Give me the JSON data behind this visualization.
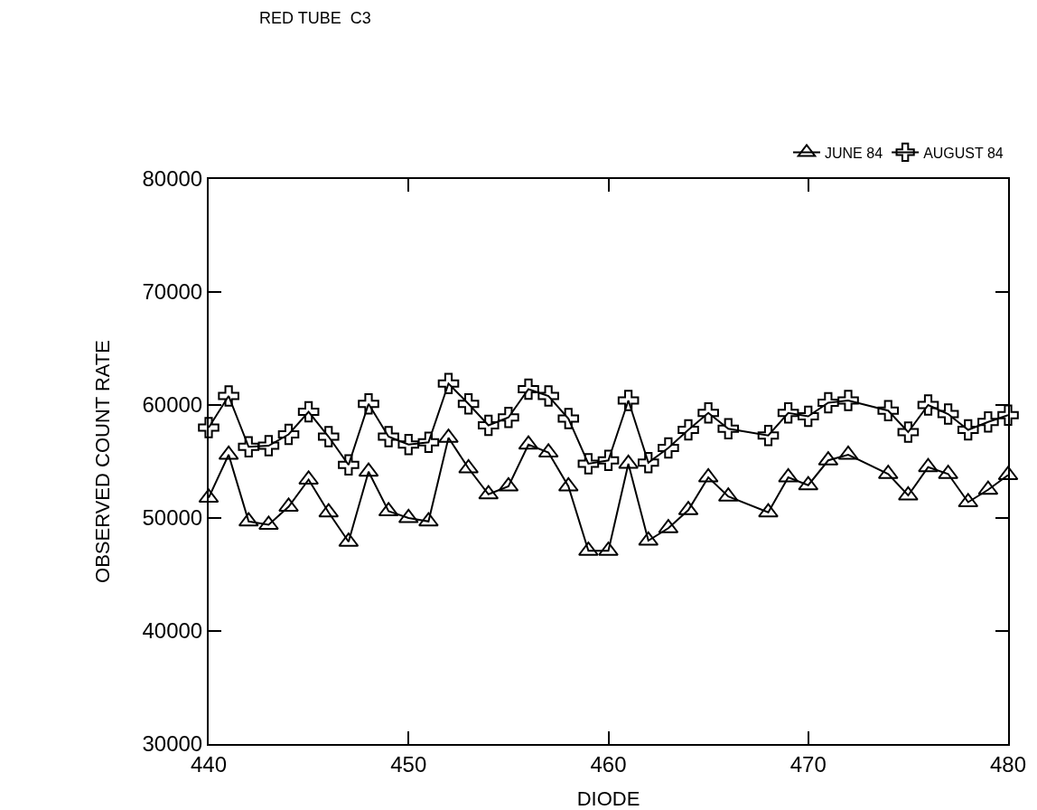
{
  "chart_data": {
    "type": "line",
    "title": "RED TUBE  C3",
    "xlabel": "DIODE",
    "ylabel": "OBSERVED COUNT RATE",
    "xlim": [
      440,
      480
    ],
    "xticks": [
      440,
      450,
      460,
      470,
      480
    ],
    "ylim": [
      30000,
      80000
    ],
    "yticks": [
      30000,
      40000,
      50000,
      60000,
      70000,
      80000
    ],
    "grid": false,
    "legend": "top right",
    "line_style": "solid",
    "series": [
      {
        "name": "JUNE 84",
        "color": "#000000",
        "marker": "triangle",
        "x": [
          440,
          441,
          442,
          443,
          444,
          445,
          446,
          447,
          448,
          449,
          450,
          451,
          452,
          453,
          454,
          455,
          456,
          457,
          458,
          459,
          460,
          461,
          462,
          463,
          464,
          465,
          466,
          468,
          469,
          470,
          471,
          472,
          474,
          475,
          476,
          477,
          478,
          479,
          480
        ],
        "values": [
          51800,
          55600,
          49700,
          49400,
          51000,
          53400,
          50500,
          47900,
          54100,
          50600,
          50000,
          49700,
          57100,
          54400,
          52100,
          52800,
          56500,
          55800,
          52800,
          47100,
          47100,
          54800,
          48000,
          49100,
          50700,
          53600,
          51900,
          50500,
          53600,
          52900,
          55100,
          55600,
          53900,
          52000,
          54500,
          53900,
          51400,
          52500,
          53800
        ]
      },
      {
        "name": "AUGUST 84",
        "color": "#000000",
        "marker": "cross",
        "x": [
          440,
          441,
          442,
          443,
          444,
          445,
          446,
          447,
          448,
          449,
          450,
          451,
          452,
          453,
          454,
          455,
          456,
          457,
          458,
          459,
          460,
          461,
          462,
          463,
          464,
          465,
          466,
          468,
          469,
          470,
          471,
          472,
          474,
          475,
          476,
          477,
          478,
          479,
          480
        ],
        "values": [
          58000,
          60800,
          56300,
          56400,
          57400,
          59400,
          57200,
          54700,
          60100,
          57200,
          56500,
          56700,
          61900,
          60100,
          58200,
          58900,
          61400,
          60800,
          58800,
          54800,
          55100,
          60400,
          54900,
          56200,
          57800,
          59300,
          57900,
          57300,
          59300,
          59000,
          60200,
          60400,
          59500,
          57600,
          60000,
          59200,
          57800,
          58500,
          59100
        ]
      }
    ]
  }
}
